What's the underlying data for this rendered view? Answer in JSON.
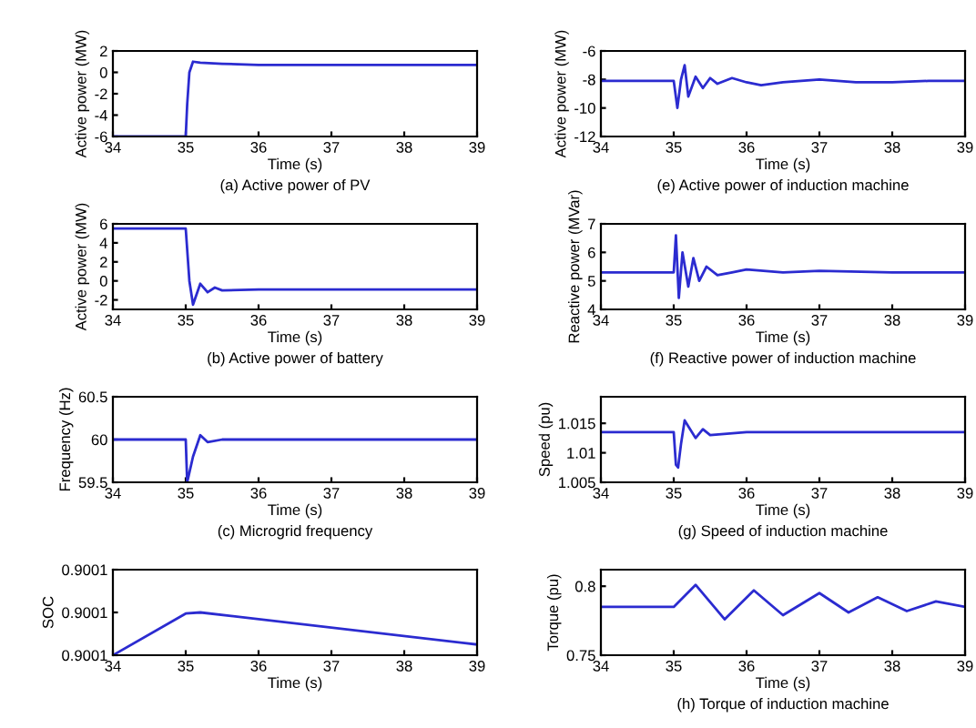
{
  "chart_data": [
    {
      "type": "line",
      "title": "(a) Active power of PV",
      "xlabel": "Time (s)",
      "ylabel": "Active power (MW)",
      "color": "#2b2bd0",
      "xlim": [
        34,
        39
      ],
      "xticks": [
        34,
        35,
        36,
        37,
        38,
        39
      ],
      "ylim": [
        -6,
        2
      ],
      "yticks": [
        -6,
        -4,
        -2,
        0,
        2
      ],
      "x": [
        34,
        35,
        35.02,
        35.05,
        35.1,
        35.2,
        35.5,
        36,
        37,
        38,
        39
      ],
      "values": [
        -6,
        -6,
        -3,
        0,
        1,
        0.9,
        0.8,
        0.7,
        0.7,
        0.7,
        0.7
      ]
    },
    {
      "type": "line",
      "title": "(e) Active power of induction machine",
      "xlabel": "Time (s)",
      "ylabel": "Active power (MW)",
      "color": "#2b2bd0",
      "xlim": [
        34,
        39
      ],
      "xticks": [
        34,
        35,
        36,
        37,
        38,
        39
      ],
      "ylim": [
        -12,
        -6
      ],
      "yticks": [
        -12,
        -10,
        -8,
        -6
      ],
      "x": [
        34,
        35,
        35.05,
        35.1,
        35.15,
        35.2,
        35.3,
        35.4,
        35.5,
        35.6,
        35.8,
        36,
        36.2,
        36.5,
        37,
        37.5,
        38,
        38.5,
        39
      ],
      "values": [
        -8.1,
        -8.1,
        -10,
        -8,
        -7,
        -9.2,
        -7.8,
        -8.6,
        -7.9,
        -8.3,
        -7.9,
        -8.2,
        -8.4,
        -8.2,
        -8.0,
        -8.2,
        -8.2,
        -8.1,
        -8.1
      ]
    },
    {
      "type": "line",
      "title": "(b) Active power of battery",
      "xlabel": "Time (s)",
      "ylabel": "Active power (MW)",
      "color": "#2b2bd0",
      "xlim": [
        34,
        39
      ],
      "xticks": [
        34,
        35,
        36,
        37,
        38,
        39
      ],
      "ylim": [
        -3,
        6
      ],
      "yticks": [
        -2,
        0,
        2,
        4,
        6
      ],
      "x": [
        34,
        35,
        35.05,
        35.1,
        35.2,
        35.3,
        35.4,
        35.5,
        36,
        37,
        38,
        39
      ],
      "values": [
        5.5,
        5.5,
        0,
        -2.5,
        -0.3,
        -1.2,
        -0.7,
        -1.0,
        -0.9,
        -0.9,
        -0.9,
        -0.9
      ]
    },
    {
      "type": "line",
      "title": "(f) Reactive power of induction machine",
      "xlabel": "Time (s)",
      "ylabel": "Reactive power (MVar)",
      "color": "#2b2bd0",
      "xlim": [
        34,
        39
      ],
      "xticks": [
        34,
        35,
        36,
        37,
        38,
        39
      ],
      "ylim": [
        4,
        7
      ],
      "yticks": [
        4,
        5,
        6,
        7
      ],
      "x": [
        34,
        35,
        35.03,
        35.07,
        35.12,
        35.2,
        35.27,
        35.35,
        35.45,
        35.6,
        35.8,
        36,
        36.5,
        37,
        38,
        39
      ],
      "values": [
        5.3,
        5.3,
        6.6,
        4.4,
        6.0,
        4.8,
        5.8,
        5.0,
        5.5,
        5.2,
        5.3,
        5.4,
        5.3,
        5.35,
        5.3,
        5.3
      ]
    },
    {
      "type": "line",
      "title": "(c) Microgrid frequency",
      "xlabel": "Time (s)",
      "ylabel": "Frequency (Hz)",
      "color": "#2b2bd0",
      "xlim": [
        34,
        39
      ],
      "xticks": [
        34,
        35,
        36,
        37,
        38,
        39
      ],
      "ylim": [
        59.5,
        60.5
      ],
      "yticks": [
        59.5,
        60,
        60.5
      ],
      "x": [
        34,
        35,
        35.02,
        35.1,
        35.2,
        35.3,
        35.5,
        36,
        37,
        38,
        39
      ],
      "values": [
        60,
        60,
        59.5,
        59.8,
        60.05,
        59.97,
        60,
        60,
        60,
        60,
        60
      ]
    },
    {
      "type": "line",
      "title": "(g) Speed of induction machine",
      "xlabel": "Time (s)",
      "ylabel": "Speed (pu)",
      "color": "#2b2bd0",
      "xlim": [
        34,
        39
      ],
      "xticks": [
        34,
        35,
        36,
        37,
        38,
        39
      ],
      "ylim": [
        1.005,
        1.0195
      ],
      "yticks": [
        1.005,
        1.01,
        1.015
      ],
      "x": [
        34,
        35,
        35.03,
        35.06,
        35.1,
        35.15,
        35.2,
        35.3,
        35.4,
        35.5,
        36,
        37,
        38,
        39
      ],
      "values": [
        1.0135,
        1.0135,
        1.008,
        1.0075,
        1.0115,
        1.0155,
        1.0145,
        1.0125,
        1.014,
        1.013,
        1.0135,
        1.0135,
        1.0135,
        1.0135
      ]
    },
    {
      "type": "line",
      "xlabel": "Time (s)",
      "ylabel": "SOC",
      "color": "#2b2bd0",
      "xlim": [
        34,
        39
      ],
      "xticks": [
        34,
        35,
        36,
        37,
        38,
        39
      ],
      "ylim": [
        0.90006,
        0.90014
      ],
      "yticks": [
        {
          "value": 0.90006,
          "label": "0.9001"
        },
        {
          "value": 0.9001,
          "label": "0.9001"
        },
        {
          "value": 0.90014,
          "label": "0.9001"
        }
      ],
      "x": [
        34,
        35,
        35.2,
        39
      ],
      "values": [
        0.90006,
        0.900099,
        0.9001,
        0.90007
      ]
    },
    {
      "type": "line",
      "title": "(h) Torque of induction machine",
      "xlabel": "Time (s)",
      "ylabel": "Torque (pu)",
      "color": "#2b2bd0",
      "xlim": [
        34,
        39
      ],
      "xticks": [
        34,
        35,
        36,
        37,
        38,
        39
      ],
      "ylim": [
        0.75,
        0.812
      ],
      "yticks": [
        0.75,
        0.8
      ],
      "x": [
        34,
        35,
        35.3,
        35.7,
        36.1,
        36.5,
        37,
        37.4,
        37.8,
        38.2,
        38.6,
        39
      ],
      "values": [
        0.785,
        0.785,
        0.801,
        0.776,
        0.797,
        0.779,
        0.795,
        0.781,
        0.792,
        0.782,
        0.789,
        0.785
      ]
    }
  ]
}
